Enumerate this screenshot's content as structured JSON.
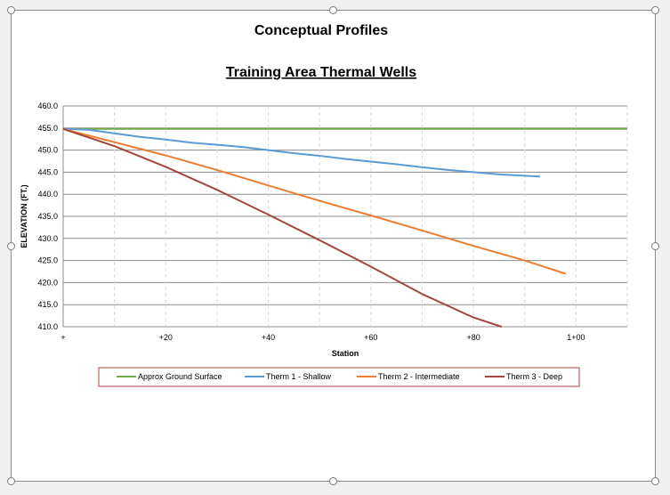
{
  "chart_data": {
    "type": "line",
    "title": "Conceptual Profiles",
    "subtitle": "Training Area Thermal Wells",
    "xlabel": "Station",
    "ylabel": "ELEVATION (FT.)",
    "xlim": [
      0,
      110
    ],
    "ylim": [
      410,
      460
    ],
    "x_ticks": [
      {
        "value": 0,
        "label": "+"
      },
      {
        "value": 20,
        "label": "+20"
      },
      {
        "value": 40,
        "label": "+40"
      },
      {
        "value": 60,
        "label": "+60"
      },
      {
        "value": 80,
        "label": "+80"
      },
      {
        "value": 100,
        "label": "1+00"
      }
    ],
    "y_ticks": [
      "460.0",
      "455.0",
      "450.0",
      "445.0",
      "440.0",
      "435.0",
      "430.0",
      "425.0",
      "420.0",
      "415.0",
      "410.0"
    ],
    "grid": {
      "horizontal": true,
      "vertical": true,
      "vertical_style": "dashed"
    },
    "legend_position": "bottom",
    "series": [
      {
        "name": "Approx Ground Surface",
        "color": "#70ad47",
        "points": [
          [
            0,
            454.8
          ],
          [
            110,
            454.8
          ]
        ]
      },
      {
        "name": "Therm 1 - Shallow",
        "color": "#5b9bd5",
        "points": [
          [
            0,
            454.8
          ],
          [
            5,
            454.6
          ],
          [
            10,
            453.8
          ],
          [
            15,
            453.0
          ],
          [
            20,
            452.4
          ],
          [
            25,
            451.7
          ],
          [
            30,
            451.2
          ],
          [
            35,
            450.7
          ],
          [
            40,
            450.0
          ],
          [
            45,
            449.3
          ],
          [
            50,
            448.7
          ],
          [
            55,
            448.0
          ],
          [
            60,
            447.4
          ],
          [
            65,
            446.8
          ],
          [
            70,
            446.1
          ],
          [
            75,
            445.5
          ],
          [
            80,
            445.0
          ],
          [
            85,
            444.5
          ],
          [
            90,
            444.2
          ],
          [
            93,
            444.0
          ]
        ]
      },
      {
        "name": "Therm 2 - Intermediate",
        "color": "#ed7d31",
        "points": [
          [
            0,
            454.8
          ],
          [
            10,
            451.8
          ],
          [
            20,
            448.8
          ],
          [
            30,
            445.5
          ],
          [
            40,
            442.0
          ],
          [
            50,
            438.5
          ],
          [
            60,
            435.2
          ],
          [
            70,
            431.8
          ],
          [
            80,
            428.3
          ],
          [
            90,
            425.0
          ],
          [
            98,
            422.0
          ]
        ]
      },
      {
        "name": "Therm 3 - Deep",
        "color": "#a5453e",
        "points": [
          [
            0,
            454.8
          ],
          [
            10,
            450.9
          ],
          [
            20,
            446.2
          ],
          [
            30,
            441.0
          ],
          [
            40,
            435.4
          ],
          [
            50,
            429.6
          ],
          [
            60,
            423.6
          ],
          [
            70,
            417.4
          ],
          [
            80,
            412.1
          ],
          [
            85.5,
            410.0
          ]
        ]
      }
    ]
  }
}
